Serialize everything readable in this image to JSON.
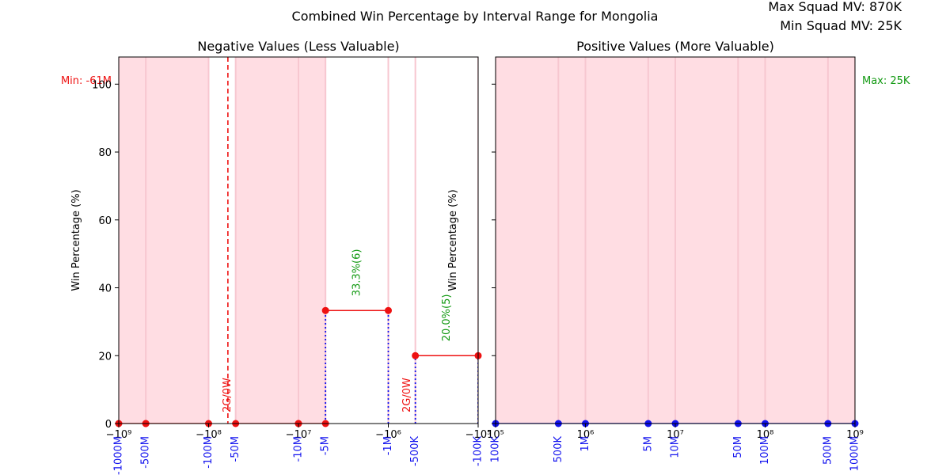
{
  "figure": {
    "suptitle": "Combined Win Percentage by Interval Range for Mongolia",
    "max_squad_mv": "Max Squad MV: 870K",
    "min_squad_mv": "Min Squad MV: 25K"
  },
  "colors": {
    "shade": "#ffdde3",
    "shade_line": "#f7c7d0",
    "red": "#ee1111",
    "blue": "#1111ee",
    "green": "#119911",
    "axis": "#000000"
  },
  "chart_data": [
    {
      "type": "line",
      "panel": "negative",
      "title": "Negative Values (Less Valuable)",
      "ylabel": "Win Percentage (%)",
      "xscale": "symlog-negative",
      "xlim": [
        -1000000000,
        -100000
      ],
      "ylim": [
        0,
        108
      ],
      "yticks": [
        0,
        20,
        40,
        60,
        80,
        100
      ],
      "xticks": [
        {
          "value": -1000000000,
          "label": "−1000M"
        },
        {
          "value": -100000000,
          "label": "−100M"
        },
        {
          "value": -10000000,
          "label": "−10M"
        },
        {
          "value": -1000000,
          "label": "−1M"
        },
        {
          "value": -100000,
          "label": "−100K"
        }
      ],
      "xtick_math": [
        {
          "value": -1000000000,
          "label": "−10⁹"
        },
        {
          "value": -100000000,
          "label": "−10⁸"
        },
        {
          "value": -10000000,
          "label": "−10⁷"
        },
        {
          "value": -1000000,
          "label": "−10⁶"
        },
        {
          "value": -100000,
          "label": "−10⁵"
        }
      ],
      "boundaries": [
        {
          "value": -1000000000,
          "label": "-1000M"
        },
        {
          "value": -500000000,
          "label": "-500M"
        },
        {
          "value": -100000000,
          "label": "-100M"
        },
        {
          "value": -50000000,
          "label": "-50M"
        },
        {
          "value": -10000000,
          "label": "-10M"
        },
        {
          "value": -5000000,
          "label": "-5M"
        },
        {
          "value": -1000000,
          "label": "-1M"
        },
        {
          "value": -500000,
          "label": "-500K"
        },
        {
          "value": -100000,
          "label": "-100K"
        }
      ],
      "shaded": [
        [
          -1000000000,
          -100000000
        ],
        [
          -50000000,
          -5000000
        ]
      ],
      "segments": [
        {
          "from": -1000000000,
          "to": -500000000,
          "win_pct": 0
        },
        {
          "from": -500000000,
          "to": -100000000,
          "win_pct": 0
        },
        {
          "from": -50000000,
          "to": -10000000,
          "win_pct": 0
        },
        {
          "from": -10000000,
          "to": -5000000,
          "win_pct": 0
        },
        {
          "from": -5000000,
          "to": -1000000,
          "win_pct": 33.3,
          "label": "33.3%(6)"
        },
        {
          "from": -500000,
          "to": -100000,
          "win_pct": 20.0,
          "label": "20.0%(5)"
        }
      ],
      "draw_annotations": [
        {
          "x": -100000000,
          "label": "2G/0W"
        },
        {
          "x": -1000000,
          "label": "2G/0W"
        }
      ],
      "min_line": {
        "value": -61000000,
        "label": "Min: -61M"
      }
    },
    {
      "type": "line",
      "panel": "positive",
      "title": "Positive Values (More Valuable)",
      "ylabel": "Win Percentage (%)",
      "xscale": "log",
      "xlim": [
        100000,
        1000000000
      ],
      "ylim": [
        0,
        108
      ],
      "xtick_math": [
        {
          "value": 100000,
          "label": "10⁵"
        },
        {
          "value": 1000000,
          "label": "10⁶"
        },
        {
          "value": 10000000,
          "label": "10⁷"
        },
        {
          "value": 100000000,
          "label": "10⁸"
        },
        {
          "value": 1000000000,
          "label": "10⁹"
        }
      ],
      "boundaries": [
        {
          "value": 100000,
          "label": "100K"
        },
        {
          "value": 500000,
          "label": "500K"
        },
        {
          "value": 1000000,
          "label": "1M"
        },
        {
          "value": 5000000,
          "label": "5M"
        },
        {
          "value": 10000000,
          "label": "10M"
        },
        {
          "value": 50000000,
          "label": "50M"
        },
        {
          "value": 100000000,
          "label": "100M"
        },
        {
          "value": 500000000,
          "label": "500M"
        },
        {
          "value": 1000000000,
          "label": "1000M"
        }
      ],
      "shaded": [
        [
          100000,
          1000000000
        ]
      ],
      "points_win_pct": 0,
      "max_line": {
        "label": "Max: 25K"
      }
    }
  ]
}
